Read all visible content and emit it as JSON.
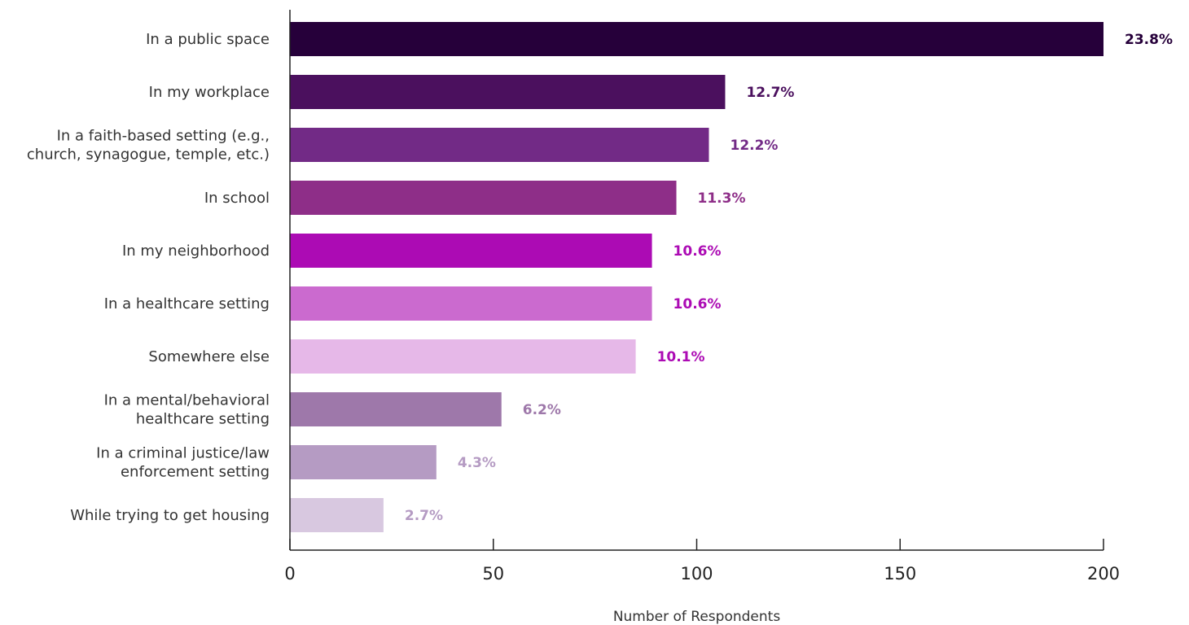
{
  "chart_data": {
    "type": "bar",
    "orientation": "horizontal",
    "title": "",
    "xlabel": "Number of Respondents",
    "ylabel": "",
    "xlim": [
      0,
      200
    ],
    "xticks": [
      0,
      50,
      100,
      150,
      200
    ],
    "grid": false,
    "categories": [
      [
        "In a public space"
      ],
      [
        "In my workplace"
      ],
      [
        "In a faith-based setting (e.g.,",
        "church, synagogue, temple, etc.)"
      ],
      [
        "In school"
      ],
      [
        "In my neighborhood"
      ],
      [
        "In a healthcare setting"
      ],
      [
        "Somewhere else"
      ],
      [
        "In a mental/behavioral",
        "healthcare setting"
      ],
      [
        "In a criminal justice/law",
        "enforcement setting"
      ],
      [
        "While trying to get housing"
      ]
    ],
    "values": [
      200,
      107,
      103,
      95,
      89,
      89,
      85,
      52,
      36,
      23
    ],
    "data_labels": [
      "23.8%",
      "12.7%",
      "12.2%",
      "11.3%",
      "10.6%",
      "10.6%",
      "10.1%",
      "6.2%",
      "4.3%",
      "2.7%"
    ],
    "bar_colors": [
      "#26003a",
      "#4b105e",
      "#722a86",
      "#8e2e88",
      "#ac0bb4",
      "#cb6acf",
      "#e6b8e8",
      "#9e78aa",
      "#b59bc3",
      "#d8c8e0"
    ],
    "label_colors": [
      "#26003a",
      "#4b105e",
      "#722a86",
      "#8e2e88",
      "#ac0bb4",
      "#ac0bb4",
      "#ac0bb4",
      "#9e78aa",
      "#b59bc3",
      "#b59bc3"
    ]
  }
}
